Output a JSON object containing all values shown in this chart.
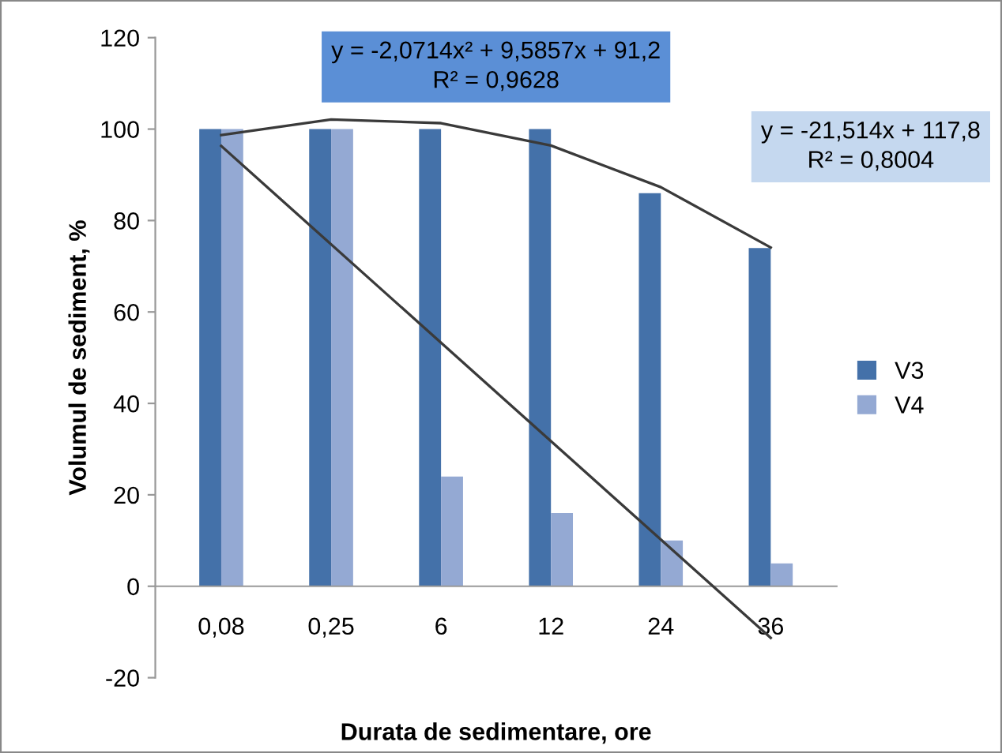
{
  "chart_data": {
    "type": "bar",
    "categories": [
      "0,08",
      "0,25",
      "6",
      "12",
      "24",
      "36"
    ],
    "xlabel": "Durata de sedimentare, ore",
    "ylabel": "Volumul de sediment, %",
    "series": [
      {
        "name": "V3",
        "color": "#4471a9",
        "values": [
          100,
          100,
          100,
          100,
          86,
          74
        ]
      },
      {
        "name": "V4",
        "color": "#94a9d3",
        "values": [
          100,
          100,
          24,
          16,
          10,
          5
        ]
      },
      {
        "type": "line",
        "color": "#3a3a3a",
        "x": [
          "0,08",
          "0,25",
          "6",
          "12",
          "24",
          "36"
        ],
        "values": [
          98.7,
          102.1,
          101.3,
          96.4,
          87.3,
          74.1
        ]
      },
      {
        "type": "line",
        "color": "#3a3a3a",
        "x": [
          "0,08",
          "36"
        ],
        "values": [
          96.3,
          -11.3
        ]
      }
    ],
    "annotations": [
      "y = -2,0714x² + 9,5857x + 91,2\nR² = 0,9628",
      "y = -21,514x + 117,8\nR² = 0,8004"
    ],
    "ylim": [
      -20,
      120
    ],
    "yticks": [
      -20,
      0,
      20,
      40,
      60,
      80,
      100,
      120
    ],
    "grid": false,
    "legend": "right"
  }
}
